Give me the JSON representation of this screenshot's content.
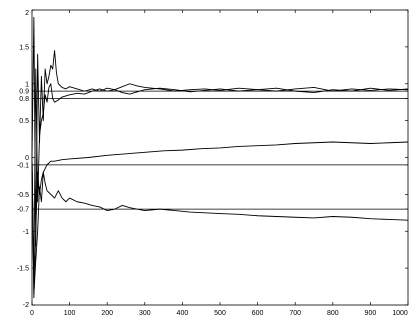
{
  "chart_data": {
    "type": "line",
    "title": "",
    "xlabel": "",
    "ylabel": "",
    "xlim": [
      0,
      1000
    ],
    "ylim": [
      -2,
      2
    ],
    "grid": false,
    "x_ticks": [
      0,
      100,
      200,
      300,
      400,
      500,
      600,
      700,
      800,
      900,
      1000
    ],
    "y_ticks": [
      2,
      1.5,
      1,
      0.9,
      0.8,
      0.5,
      0,
      -0.1,
      -0.5,
      -0.7,
      -1,
      -1.5,
      -2
    ],
    "reference_lines": [
      0.9,
      0.8,
      -0.1,
      -0.7
    ],
    "series": [
      {
        "values": [
          [
            0,
            0
          ],
          [
            5,
            1.9
          ],
          [
            10,
            -1.2
          ],
          [
            15,
            1.4
          ],
          [
            20,
            0.2
          ],
          [
            25,
            1.1
          ],
          [
            30,
            0.5
          ],
          [
            35,
            1.2
          ],
          [
            40,
            1.0
          ],
          [
            45,
            1.1
          ],
          [
            50,
            1.25
          ],
          [
            55,
            1.2
          ],
          [
            60,
            1.45
          ],
          [
            65,
            1.15
          ],
          [
            70,
            1.0
          ],
          [
            80,
            0.95
          ],
          [
            90,
            0.93
          ],
          [
            100,
            0.96
          ],
          [
            120,
            0.93
          ],
          [
            140,
            0.9
          ],
          [
            160,
            0.93
          ],
          [
            180,
            0.9
          ],
          [
            200,
            0.94
          ],
          [
            220,
            0.92
          ],
          [
            240,
            0.96
          ],
          [
            260,
            1.0
          ],
          [
            280,
            0.97
          ],
          [
            300,
            0.95
          ],
          [
            340,
            0.93
          ],
          [
            380,
            0.9
          ],
          [
            420,
            0.92
          ],
          [
            460,
            0.93
          ],
          [
            500,
            0.91
          ],
          [
            550,
            0.94
          ],
          [
            600,
            0.92
          ],
          [
            650,
            0.9
          ],
          [
            700,
            0.93
          ],
          [
            750,
            0.95
          ],
          [
            800,
            0.9
          ],
          [
            850,
            0.93
          ],
          [
            900,
            0.91
          ],
          [
            950,
            0.93
          ],
          [
            1000,
            0.92
          ]
        ]
      },
      {
        "values": [
          [
            0,
            0
          ],
          [
            5,
            -1.6
          ],
          [
            10,
            1.2
          ],
          [
            15,
            -0.6
          ],
          [
            20,
            0.3
          ],
          [
            25,
            0.5
          ],
          [
            30,
            0.6
          ],
          [
            35,
            0.85
          ],
          [
            40,
            0.75
          ],
          [
            45,
            0.95
          ],
          [
            50,
            1.0
          ],
          [
            55,
            0.8
          ],
          [
            60,
            0.75
          ],
          [
            70,
            0.78
          ],
          [
            80,
            0.82
          ],
          [
            100,
            0.85
          ],
          [
            120,
            0.87
          ],
          [
            140,
            0.86
          ],
          [
            160,
            0.9
          ],
          [
            180,
            0.93
          ],
          [
            200,
            0.9
          ],
          [
            220,
            0.92
          ],
          [
            240,
            0.88
          ],
          [
            260,
            0.86
          ],
          [
            280,
            0.89
          ],
          [
            300,
            0.92
          ],
          [
            340,
            0.94
          ],
          [
            380,
            0.92
          ],
          [
            420,
            0.89
          ],
          [
            460,
            0.91
          ],
          [
            500,
            0.93
          ],
          [
            550,
            0.9
          ],
          [
            600,
            0.92
          ],
          [
            650,
            0.94
          ],
          [
            700,
            0.9
          ],
          [
            750,
            0.88
          ],
          [
            800,
            0.92
          ],
          [
            850,
            0.9
          ],
          [
            900,
            0.94
          ],
          [
            950,
            0.91
          ],
          [
            1000,
            0.93
          ]
        ]
      },
      {
        "values": [
          [
            0,
            0
          ],
          [
            5,
            -1.9
          ],
          [
            10,
            -1.0
          ],
          [
            15,
            -0.2
          ],
          [
            20,
            -0.5
          ],
          [
            25,
            -0.3
          ],
          [
            30,
            -0.2
          ],
          [
            35,
            -0.15
          ],
          [
            40,
            -0.1
          ],
          [
            50,
            -0.05
          ],
          [
            60,
            -0.05
          ],
          [
            80,
            -0.03
          ],
          [
            100,
            -0.02
          ],
          [
            150,
            0.0
          ],
          [
            200,
            0.03
          ],
          [
            250,
            0.05
          ],
          [
            300,
            0.07
          ],
          [
            350,
            0.09
          ],
          [
            400,
            0.1
          ],
          [
            450,
            0.12
          ],
          [
            500,
            0.13
          ],
          [
            550,
            0.15
          ],
          [
            600,
            0.16
          ],
          [
            650,
            0.17
          ],
          [
            700,
            0.19
          ],
          [
            750,
            0.2
          ],
          [
            800,
            0.21
          ],
          [
            850,
            0.2
          ],
          [
            900,
            0.19
          ],
          [
            950,
            0.2
          ],
          [
            1000,
            0.21
          ]
        ]
      },
      {
        "values": [
          [
            0,
            0
          ],
          [
            5,
            -1.85
          ],
          [
            10,
            -1.4
          ],
          [
            15,
            -1.0
          ],
          [
            20,
            -0.4
          ],
          [
            25,
            -0.6
          ],
          [
            30,
            -0.2
          ],
          [
            35,
            -0.35
          ],
          [
            40,
            -0.45
          ],
          [
            50,
            -0.5
          ],
          [
            60,
            -0.55
          ],
          [
            70,
            -0.45
          ],
          [
            80,
            -0.55
          ],
          [
            90,
            -0.6
          ],
          [
            100,
            -0.55
          ],
          [
            120,
            -0.6
          ],
          [
            140,
            -0.62
          ],
          [
            160,
            -0.65
          ],
          [
            180,
            -0.67
          ],
          [
            200,
            -0.72
          ],
          [
            220,
            -0.7
          ],
          [
            240,
            -0.65
          ],
          [
            260,
            -0.68
          ],
          [
            280,
            -0.7
          ],
          [
            300,
            -0.72
          ],
          [
            340,
            -0.7
          ],
          [
            380,
            -0.72
          ],
          [
            420,
            -0.74
          ],
          [
            460,
            -0.75
          ],
          [
            500,
            -0.76
          ],
          [
            550,
            -0.77
          ],
          [
            600,
            -0.79
          ],
          [
            650,
            -0.8
          ],
          [
            700,
            -0.81
          ],
          [
            750,
            -0.82
          ],
          [
            800,
            -0.8
          ],
          [
            850,
            -0.81
          ],
          [
            900,
            -0.83
          ],
          [
            950,
            -0.84
          ],
          [
            1000,
            -0.85
          ]
        ]
      }
    ]
  }
}
